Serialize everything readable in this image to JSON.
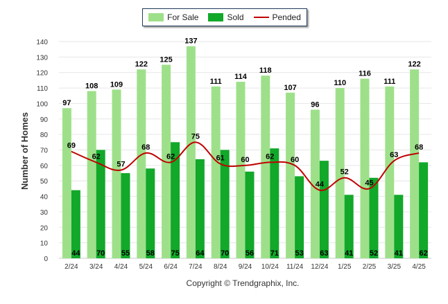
{
  "colors": {
    "for_sale": "#9ee08a",
    "sold": "#12a82a",
    "pended": "#c00000",
    "grid": "#e6e6e6",
    "axis_text": "#333333"
  },
  "legend": {
    "for_sale": "For Sale",
    "sold": "Sold",
    "pended": "Pended"
  },
  "footer": {
    "copyright": "Copyright © Trendgraphix, Inc."
  },
  "chart_data": {
    "type": "bar",
    "ylabel": "Number of Homes",
    "ylim": [
      0,
      140
    ],
    "yticks": [
      0,
      10,
      20,
      30,
      40,
      50,
      60,
      70,
      80,
      90,
      100,
      110,
      120,
      130,
      140
    ],
    "grid": true,
    "legend_position": "top-center",
    "categories": [
      "2/24",
      "3/24",
      "4/24",
      "5/24",
      "6/24",
      "7/24",
      "8/24",
      "9/24",
      "10/24",
      "11/24",
      "12/24",
      "1/25",
      "2/25",
      "3/25",
      "4/25"
    ],
    "series": [
      {
        "name": "For Sale",
        "kind": "bar",
        "values": [
          97,
          108,
          109,
          122,
          125,
          137,
          111,
          114,
          118,
          107,
          96,
          110,
          116,
          111,
          122
        ]
      },
      {
        "name": "Sold",
        "kind": "bar",
        "values": [
          44,
          70,
          55,
          58,
          75,
          64,
          70,
          56,
          71,
          53,
          63,
          41,
          52,
          41,
          62
        ]
      },
      {
        "name": "Pended",
        "kind": "line",
        "values": [
          69,
          62,
          57,
          68,
          62,
          75,
          61,
          60,
          62,
          60,
          44,
          52,
          45,
          63,
          68
        ]
      }
    ]
  }
}
